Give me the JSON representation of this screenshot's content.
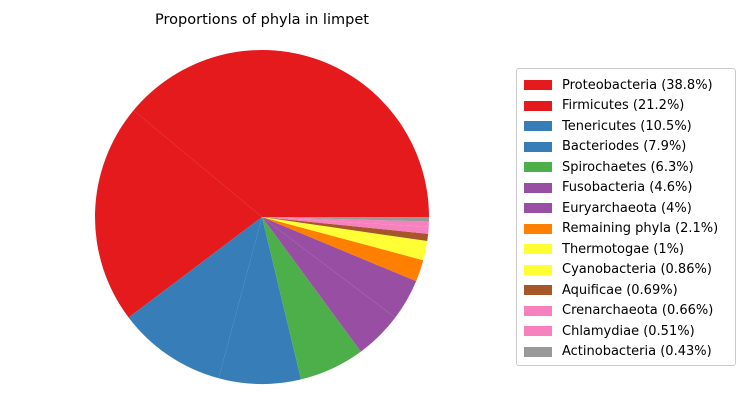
{
  "chart_data": {
    "type": "pie",
    "title": "Proportions of phyla in limpet",
    "start_angle_deg": 0,
    "direction": "counterclockwise",
    "legend_position": "right",
    "slices": [
      {
        "label": "Proteobacteria (38.8%)",
        "value": 38.8,
        "color": "#e41a1c"
      },
      {
        "label": "Firmicutes (21.2%)",
        "value": 21.2,
        "color": "#e41a1c"
      },
      {
        "label": "Tenericutes (10.5%)",
        "value": 10.5,
        "color": "#377eb8"
      },
      {
        "label": "Bacteriodes (7.9%)",
        "value": 7.9,
        "color": "#377eb8"
      },
      {
        "label": "Spirochaetes (6.3%)",
        "value": 6.3,
        "color": "#4daf4a"
      },
      {
        "label": "Fusobacteria (4.6%)",
        "value": 4.6,
        "color": "#984ea3"
      },
      {
        "label": "Euryarchaeota (4%)",
        "value": 4.0,
        "color": "#984ea3"
      },
      {
        "label": "Remaining phyla (2.1%)",
        "value": 2.1,
        "color": "#ff7f00"
      },
      {
        "label": "Thermotogae (1%)",
        "value": 1.0,
        "color": "#ffff33"
      },
      {
        "label": "Cyanobacteria (0.86%)",
        "value": 0.86,
        "color": "#ffff33"
      },
      {
        "label": "Aquificae (0.69%)",
        "value": 0.69,
        "color": "#a65628"
      },
      {
        "label": "Crenarchaeota (0.66%)",
        "value": 0.66,
        "color": "#f781bf"
      },
      {
        "label": "Chlamydiae (0.51%)",
        "value": 0.51,
        "color": "#f781bf"
      },
      {
        "label": "Actinobacteria (0.43%)",
        "value": 0.43,
        "color": "#999999"
      }
    ]
  }
}
